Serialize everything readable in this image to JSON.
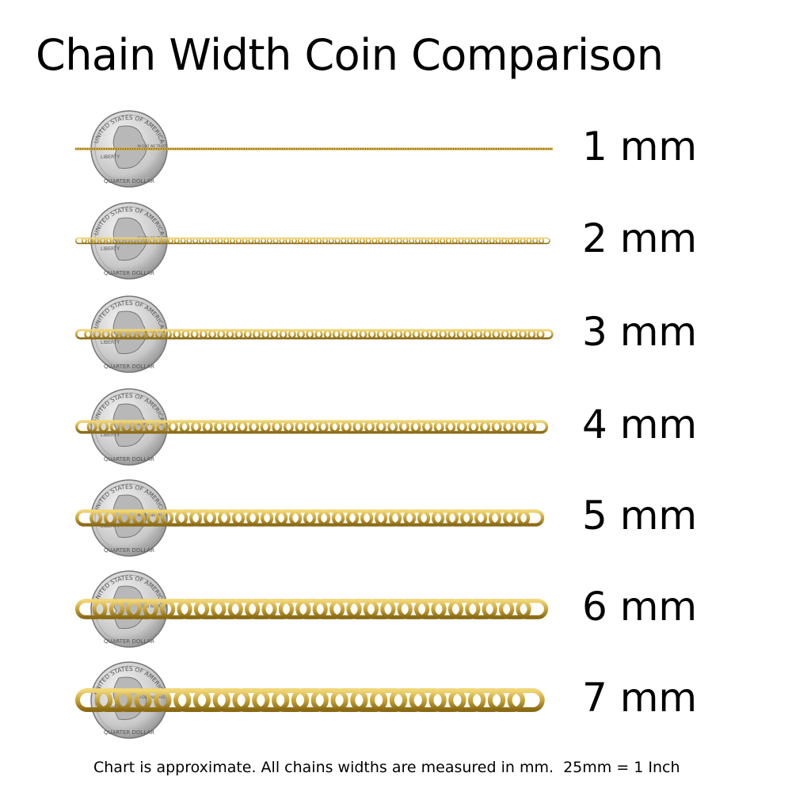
{
  "title": "Chain Width Coin Comparison",
  "coin": {
    "type": "quarter",
    "lettering": [
      "UNITED STATES OF AMERICA",
      "LIBERTY",
      "IN GOD WE TRUST",
      "QUARTER DOLLAR"
    ]
  },
  "colors": {
    "chain": "#c9a437",
    "chain_dark": "#8a6a14",
    "chain_light": "#f0d676",
    "coin": "#c8c8c8"
  },
  "rows": [
    {
      "label": "1 mm",
      "width_mm": 1
    },
    {
      "label": "2 mm",
      "width_mm": 2
    },
    {
      "label": "3 mm",
      "width_mm": 3
    },
    {
      "label": "4 mm",
      "width_mm": 4
    },
    {
      "label": "5 mm",
      "width_mm": 5
    },
    {
      "label": "6 mm",
      "width_mm": 6
    },
    {
      "label": "7 mm",
      "width_mm": 7
    }
  ],
  "footnote": "Chart is approximate. All chains widths are measured in mm.  25mm = 1 Inch"
}
